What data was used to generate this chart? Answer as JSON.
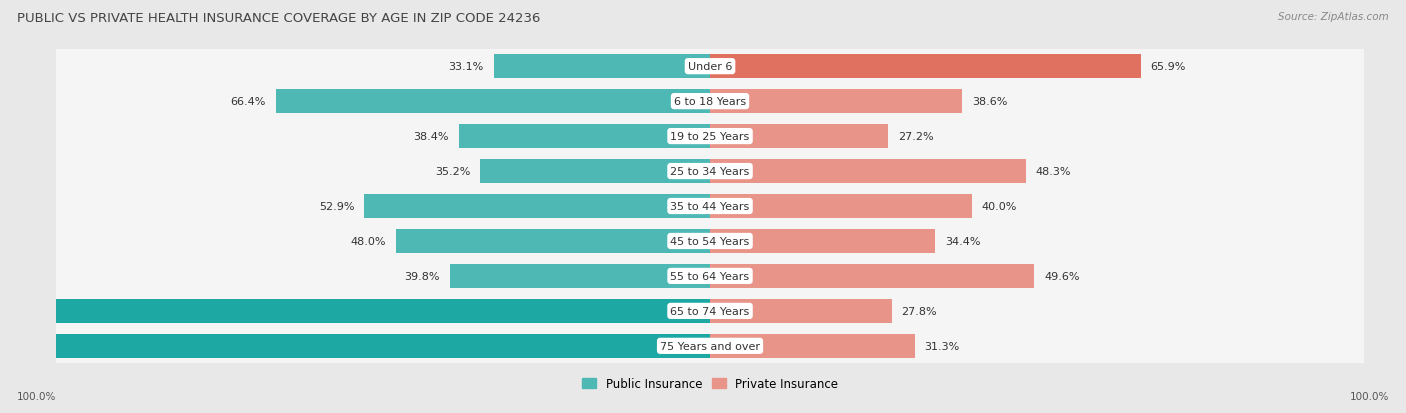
{
  "title": "PUBLIC VS PRIVATE HEALTH INSURANCE COVERAGE BY AGE IN ZIP CODE 24236",
  "source": "Source: ZipAtlas.com",
  "categories": [
    "Under 6",
    "6 to 18 Years",
    "19 to 25 Years",
    "25 to 34 Years",
    "35 to 44 Years",
    "45 to 54 Years",
    "55 to 64 Years",
    "65 to 74 Years",
    "75 Years and over"
  ],
  "public_values": [
    33.1,
    66.4,
    38.4,
    35.2,
    52.9,
    48.0,
    39.8,
    100.0,
    100.0
  ],
  "private_values": [
    65.9,
    38.6,
    27.2,
    48.3,
    40.0,
    34.4,
    49.6,
    27.8,
    31.3
  ],
  "public_color": "#4db8b4",
  "public_color_strong": "#1da8a4",
  "private_color": "#e89488",
  "private_color_strong": "#e07060",
  "bg_color": "#e8e8e8",
  "bar_bg_color_light": "#f5f5f5",
  "bar_bg_color_dark": "#e8e8e8",
  "bar_height": 0.68,
  "max_value": 100.0,
  "label_fontsize": 8.0,
  "title_fontsize": 9.5,
  "category_fontsize": 8.0,
  "legend_fontsize": 8.5
}
